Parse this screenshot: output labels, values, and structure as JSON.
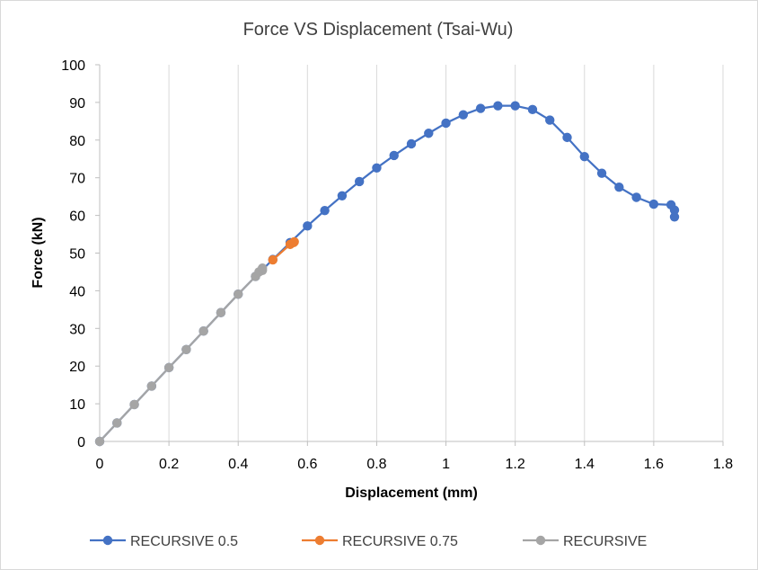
{
  "chart_data": {
    "type": "line",
    "title": "Force VS Displacement (Tsai-Wu)",
    "xlabel": "Displacement (mm)",
    "ylabel": "Force (kN)",
    "xlim": [
      0,
      1.8
    ],
    "ylim": [
      0,
      100
    ],
    "xticks": [
      0,
      0.2,
      0.4,
      0.6,
      0.8,
      1,
      1.2,
      1.4,
      1.6,
      1.8
    ],
    "xtick_labels": [
      "0",
      "0.2",
      "0.4",
      "0.6",
      "0.8",
      "1",
      "1.2",
      "1.4",
      "1.6",
      "1.8"
    ],
    "yticks": [
      0,
      10,
      20,
      30,
      40,
      50,
      60,
      70,
      80,
      90,
      100
    ],
    "ytick_labels": [
      "0",
      "10",
      "20",
      "30",
      "40",
      "50",
      "60",
      "70",
      "80",
      "90",
      "100"
    ],
    "grid": "vertical",
    "legend_position": "bottom",
    "markers": true,
    "series": [
      {
        "name": "RECURSIVE 0.5",
        "color": "#4472C4",
        "x": [
          0,
          0.05,
          0.1,
          0.15,
          0.2,
          0.25,
          0.3,
          0.35,
          0.4,
          0.45,
          0.5,
          0.55,
          0.6,
          0.65,
          0.7,
          0.75,
          0.8,
          0.85,
          0.9,
          0.95,
          1.0,
          1.05,
          1.1,
          1.15,
          1.2,
          1.25,
          1.3,
          1.35,
          1.4,
          1.45,
          1.5,
          1.55,
          1.6,
          1.65,
          1.66,
          1.66
        ],
        "y": [
          0,
          4.9,
          9.8,
          14.7,
          19.6,
          24.4,
          29.3,
          34.2,
          39.1,
          43.8,
          48.3,
          52.8,
          57.2,
          61.3,
          65.2,
          69.0,
          72.6,
          75.9,
          79.0,
          81.8,
          84.5,
          86.7,
          88.4,
          89.1,
          89.1,
          88.1,
          85.3,
          80.7,
          75.6,
          71.2,
          67.5,
          64.8,
          63.0,
          62.8,
          61.4,
          59.6
        ]
      },
      {
        "name": "RECURSIVE 0.75",
        "color": "#ED7D31",
        "x": [
          0.5,
          0.55,
          0.56,
          0.562
        ],
        "y": [
          48.2,
          52.3,
          52.8,
          53.0
        ]
      },
      {
        "name": "RECURSIVE",
        "color": "#A5A5A5",
        "x": [
          0,
          0.05,
          0.1,
          0.15,
          0.2,
          0.25,
          0.3,
          0.35,
          0.4,
          0.45,
          0.46,
          0.47,
          0.47
        ],
        "y": [
          0,
          4.9,
          9.8,
          14.7,
          19.6,
          24.4,
          29.3,
          34.2,
          39.1,
          43.8,
          45.0,
          45.4,
          46.0
        ]
      }
    ]
  }
}
